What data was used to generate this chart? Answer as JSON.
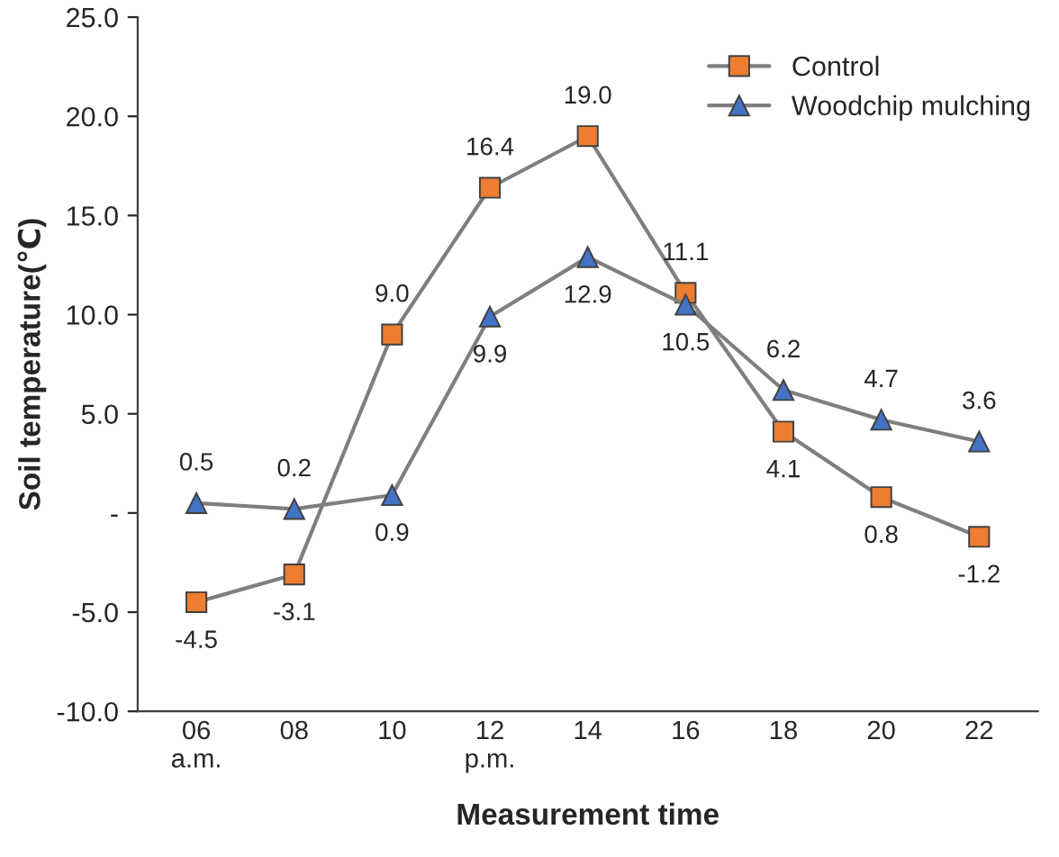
{
  "chart_data": {
    "type": "line",
    "xlabel": "Measurement time",
    "ylabel": "Soil temperature(℃)",
    "categories": [
      "06\na.m.",
      "08",
      "10",
      "12\np.m.",
      "14",
      "16",
      "18",
      "20",
      "22"
    ],
    "series": [
      {
        "name": "Control",
        "color": "#ed7d31",
        "marker": "square",
        "values": [
          -4.5,
          -3.1,
          9.0,
          16.4,
          19.0,
          11.1,
          4.1,
          0.8,
          -1.2
        ],
        "value_labels": [
          "-4.5",
          "-3.1",
          "9.0",
          "16.4",
          "19.0",
          "11.1",
          "4.1",
          "0.8",
          "-1.2"
        ]
      },
      {
        "name": "Woodchip mulching",
        "color": "#4472c4",
        "marker": "triangle",
        "values": [
          0.5,
          0.2,
          0.9,
          9.9,
          12.9,
          10.5,
          6.2,
          4.7,
          3.6
        ],
        "value_labels": [
          "0.5",
          "0.2",
          "0.9",
          "9.9",
          "12.9",
          "10.5",
          "6.2",
          "4.7",
          "3.6"
        ]
      }
    ],
    "ylim": [
      -10,
      25
    ],
    "yticks": [
      {
        "value": -10,
        "label": "-10.0"
      },
      {
        "value": -5,
        "label": "-5.0"
      },
      {
        "value": 0,
        "label": "-"
      },
      {
        "value": 5,
        "label": "5.0"
      },
      {
        "value": 10,
        "label": "10.0"
      },
      {
        "value": 15,
        "label": "15.0"
      },
      {
        "value": 20,
        "label": "20.0"
      },
      {
        "value": 25,
        "label": "25.0"
      }
    ],
    "grid": false,
    "legend": "top right",
    "line_style": "solid"
  }
}
